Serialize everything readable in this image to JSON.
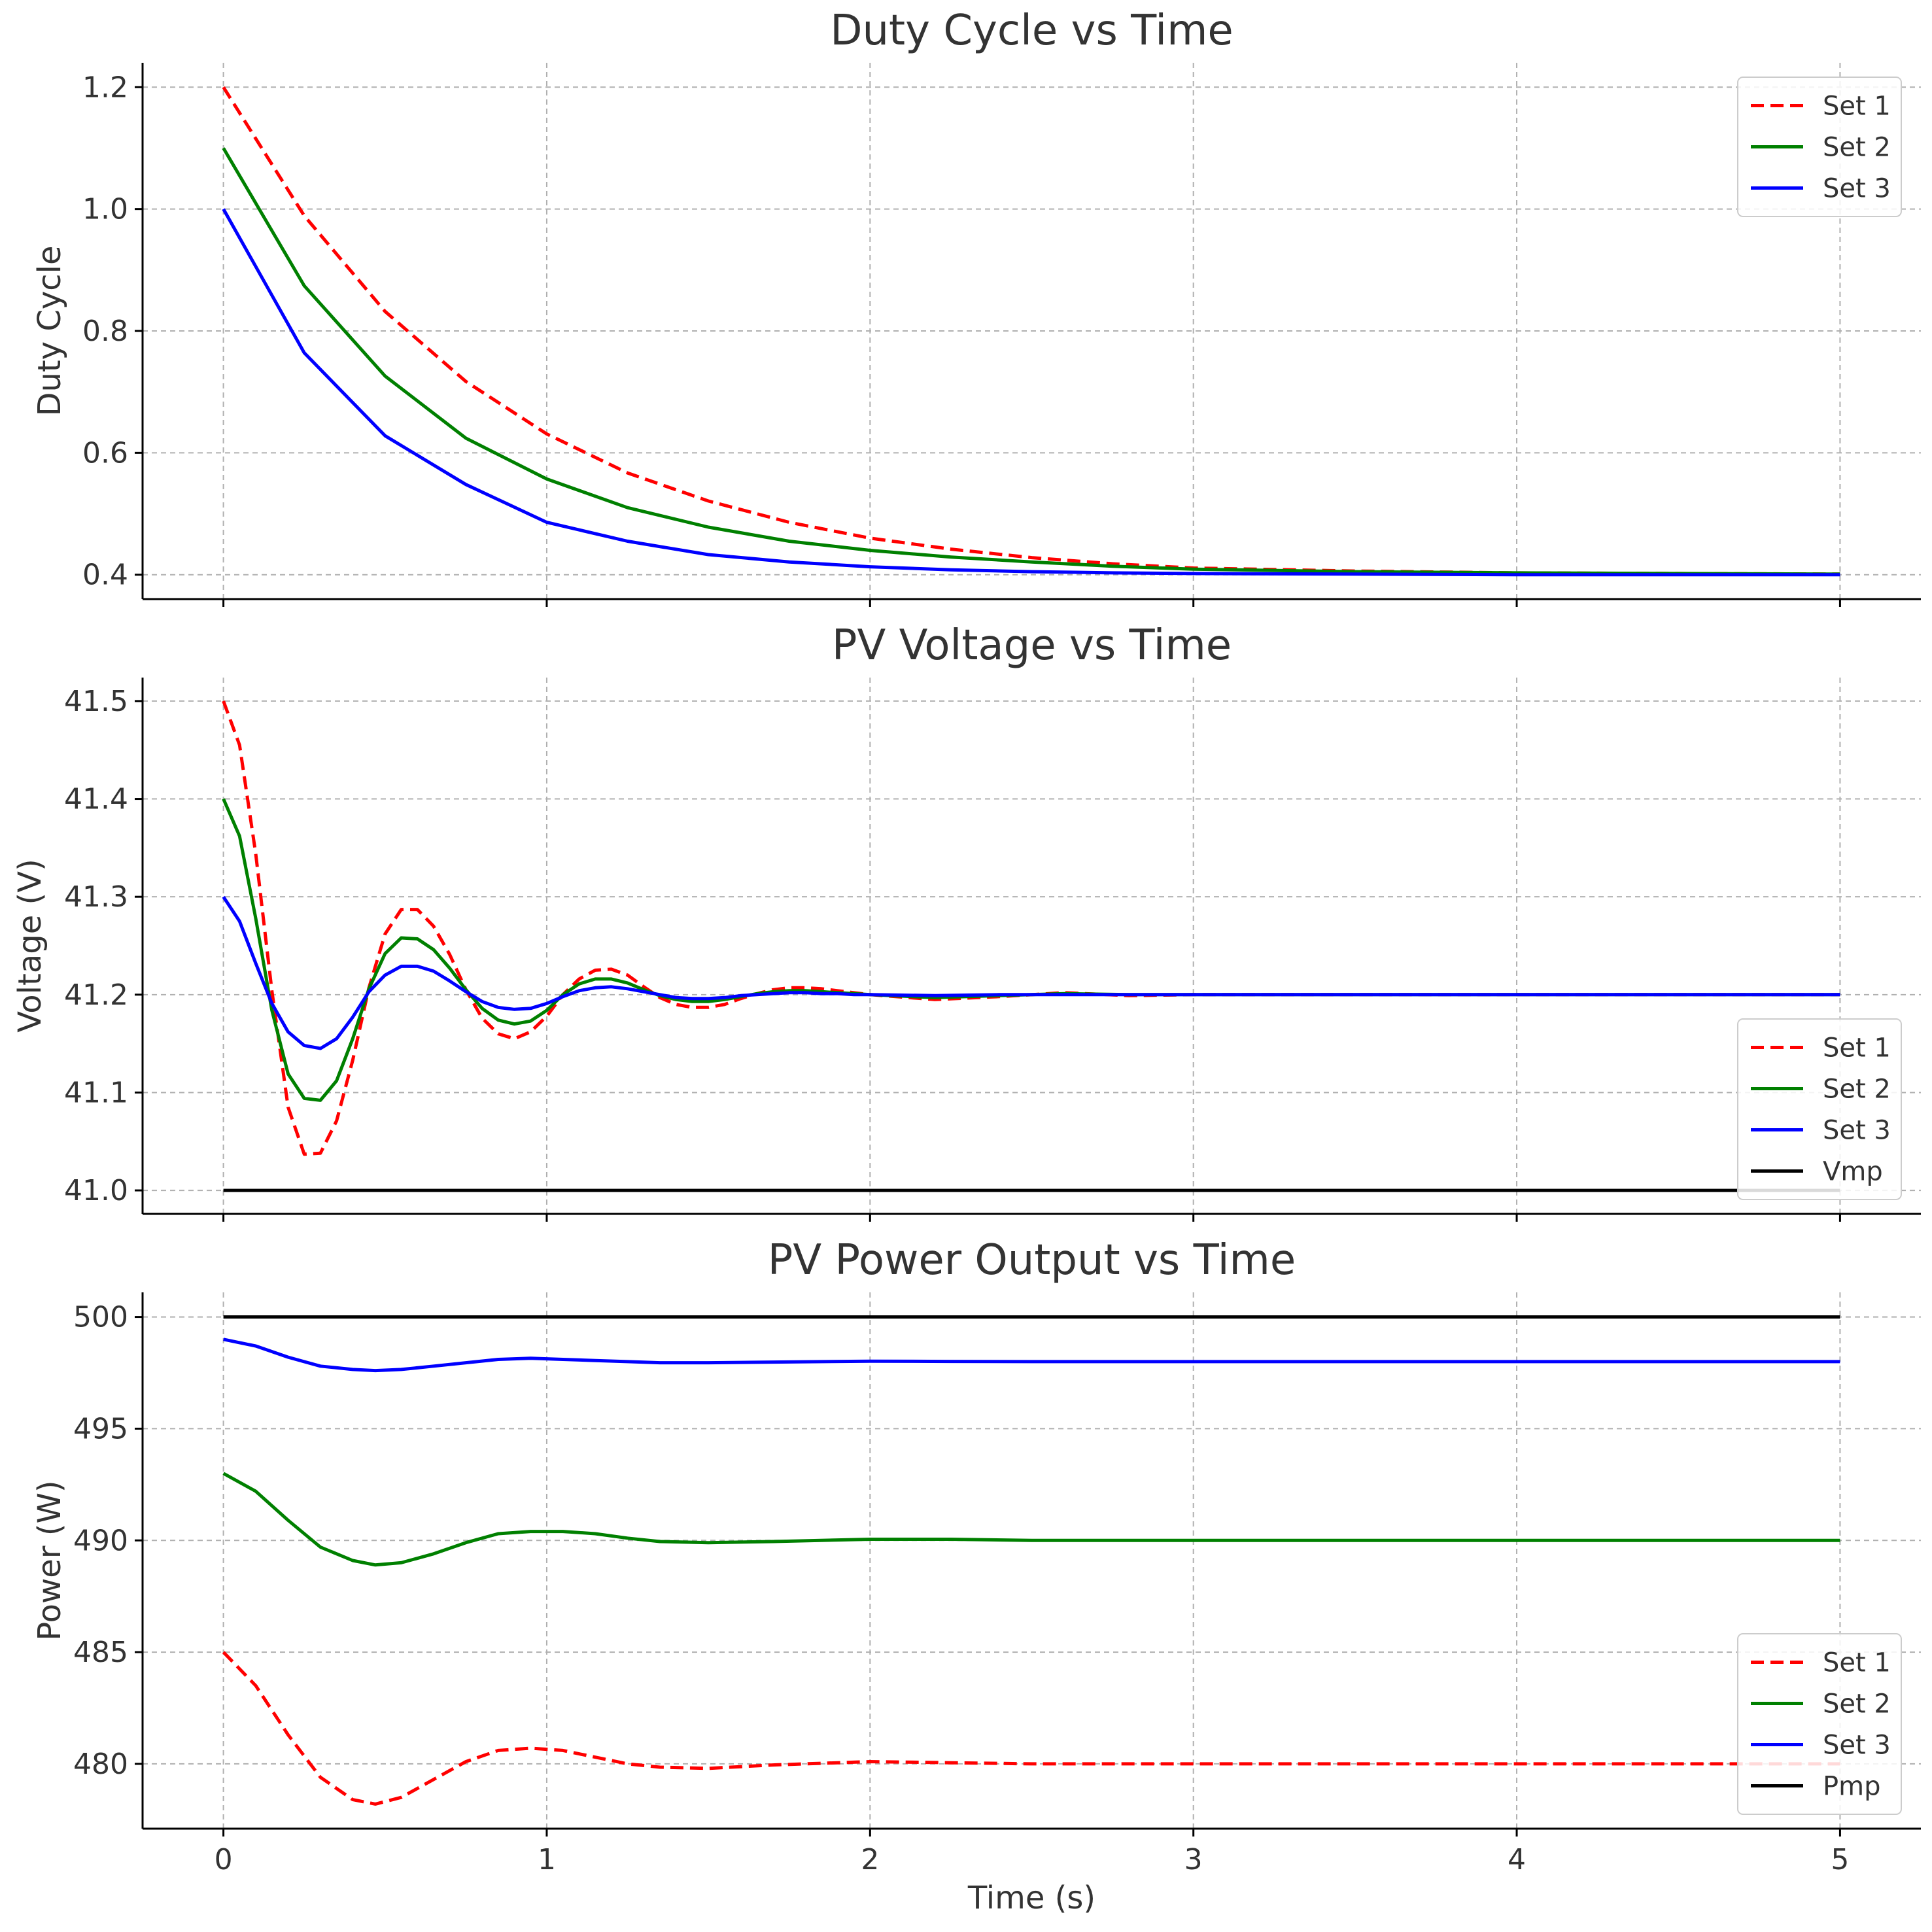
{
  "chart_data": [
    {
      "type": "line",
      "title": "Duty Cycle vs Time",
      "xlabel": "",
      "ylabel": "Duty Cycle",
      "xlim": [
        -0.25,
        5.25
      ],
      "ylim": [
        0.36,
        1.24
      ],
      "xticks": [
        0,
        1,
        2,
        3,
        4,
        5
      ],
      "yticks": [
        0.4,
        0.6,
        0.8,
        1.0,
        1.2
      ],
      "ytick_labels": [
        "0.4",
        "0.6",
        "0.8",
        "1.0",
        "1.2"
      ],
      "xtick_labels": [],
      "grid": true,
      "legend": "top-right",
      "x": [
        0,
        0.25,
        0.5,
        0.75,
        1,
        1.25,
        1.5,
        1.75,
        2,
        2.25,
        2.5,
        2.75,
        3,
        3.5,
        4,
        4.5,
        5
      ],
      "series": [
        {
          "name": "Set 1",
          "color": "#ff0000",
          "dash": "dashed",
          "values": [
            1.2,
            0.989,
            0.832,
            0.717,
            0.631,
            0.567,
            0.521,
            0.486,
            0.46,
            0.442,
            0.428,
            0.418,
            0.411,
            0.406,
            0.403,
            0.402,
            0.401
          ]
        },
        {
          "name": "Set 2",
          "color": "#008000",
          "dash": "solid",
          "values": [
            1.1,
            0.874,
            0.726,
            0.624,
            0.557,
            0.51,
            0.478,
            0.455,
            0.44,
            0.429,
            0.421,
            0.414,
            0.409,
            0.405,
            0.403,
            0.402,
            0.401
          ]
        },
        {
          "name": "Set 3",
          "color": "#0000ff",
          "dash": "solid",
          "values": [
            1.0,
            0.764,
            0.628,
            0.548,
            0.486,
            0.455,
            0.433,
            0.421,
            0.413,
            0.408,
            0.405,
            0.403,
            0.402,
            0.401,
            0.4,
            0.4,
            0.4
          ]
        }
      ]
    },
    {
      "type": "line",
      "title": "PV Voltage vs Time",
      "xlabel": "",
      "ylabel": "Voltage (V)",
      "xlim": [
        -0.25,
        5.25
      ],
      "ylim": [
        40.976,
        41.524
      ],
      "xticks": [
        0,
        1,
        2,
        3,
        4,
        5
      ],
      "yticks": [
        41.0,
        41.1,
        41.2,
        41.3,
        41.4,
        41.5
      ],
      "ytick_labels": [
        "41.0",
        "41.1",
        "41.2",
        "41.3",
        "41.4",
        "41.5"
      ],
      "xtick_labels": [],
      "grid": true,
      "legend": "lower-right",
      "x": [
        0,
        0.05,
        0.1,
        0.15,
        0.2,
        0.25,
        0.3,
        0.35,
        0.4,
        0.45,
        0.5,
        0.55,
        0.6,
        0.65,
        0.7,
        0.75,
        0.8,
        0.85,
        0.9,
        0.95,
        1.0,
        1.05,
        1.1,
        1.15,
        1.2,
        1.25,
        1.3,
        1.35,
        1.4,
        1.45,
        1.5,
        1.55,
        1.6,
        1.65,
        1.7,
        1.75,
        1.8,
        1.85,
        1.9,
        1.95,
        2.0,
        2.2,
        2.4,
        2.6,
        2.8,
        3.0,
        3.5,
        4.0,
        4.5,
        5.0
      ],
      "series": [
        {
          "name": "Set 1",
          "color": "#ff0000",
          "dash": "dashed",
          "values": [
            41.5,
            41.455,
            41.344,
            41.204,
            41.085,
            41.037,
            41.038,
            41.071,
            41.133,
            41.207,
            41.262,
            41.287,
            41.287,
            41.27,
            41.241,
            41.205,
            41.176,
            41.16,
            41.155,
            41.162,
            41.178,
            41.2,
            41.216,
            41.225,
            41.226,
            41.22,
            41.208,
            41.197,
            41.19,
            41.187,
            41.187,
            41.19,
            41.196,
            41.201,
            41.205,
            41.207,
            41.207,
            41.206,
            41.204,
            41.202,
            41.2,
            41.195,
            41.198,
            41.202,
            41.199,
            41.2,
            41.2,
            41.2,
            41.2,
            41.2
          ]
        },
        {
          "name": "Set 2",
          "color": "#008000",
          "dash": "solid",
          "values": [
            41.4,
            41.362,
            41.278,
            41.184,
            41.119,
            41.094,
            41.092,
            41.112,
            41.155,
            41.206,
            41.242,
            41.258,
            41.257,
            41.246,
            41.227,
            41.205,
            41.186,
            41.174,
            41.17,
            41.173,
            41.184,
            41.2,
            41.211,
            41.216,
            41.216,
            41.212,
            41.205,
            41.199,
            41.195,
            41.193,
            41.193,
            41.195,
            41.198,
            41.201,
            41.203,
            41.204,
            41.204,
            41.203,
            41.202,
            41.201,
            41.2,
            41.197,
            41.199,
            41.201,
            41.2,
            41.2,
            41.2,
            41.2,
            41.2,
            41.2
          ]
        },
        {
          "name": "Set 3",
          "color": "#0000ff",
          "dash": "solid",
          "values": [
            41.3,
            41.275,
            41.232,
            41.191,
            41.162,
            41.148,
            41.145,
            41.155,
            41.177,
            41.203,
            41.22,
            41.229,
            41.229,
            41.224,
            41.214,
            41.203,
            41.193,
            41.187,
            41.185,
            41.186,
            41.191,
            41.198,
            41.204,
            41.207,
            41.208,
            41.206,
            41.203,
            41.2,
            41.197,
            41.196,
            41.196,
            41.197,
            41.199,
            41.2,
            41.201,
            41.202,
            41.202,
            41.201,
            41.201,
            41.2,
            41.2,
            41.199,
            41.2,
            41.2,
            41.2,
            41.2,
            41.2,
            41.2,
            41.2,
            41.2
          ]
        },
        {
          "name": "Vmp",
          "color": "#000000",
          "dash": "solid",
          "values": [
            41.0,
            41.0,
            41.0,
            41.0,
            41.0,
            41.0,
            41.0,
            41.0,
            41.0,
            41.0,
            41.0,
            41.0,
            41.0,
            41.0,
            41.0,
            41.0,
            41.0,
            41.0,
            41.0,
            41.0,
            41.0,
            41.0,
            41.0,
            41.0,
            41.0,
            41.0,
            41.0,
            41.0,
            41.0,
            41.0,
            41.0,
            41.0,
            41.0,
            41.0,
            41.0,
            41.0,
            41.0,
            41.0,
            41.0,
            41.0,
            41.0,
            41.0,
            41.0,
            41.0,
            41.0,
            41.0,
            41.0,
            41.0,
            41.0,
            41.0
          ]
        }
      ]
    },
    {
      "type": "line",
      "title": "PV Power Output vs Time",
      "xlabel": "Time (s)",
      "ylabel": "Power (W)",
      "xlim": [
        -0.25,
        5.25
      ],
      "ylim": [
        477.1,
        501.1
      ],
      "xticks": [
        0,
        1,
        2,
        3,
        4,
        5
      ],
      "yticks": [
        480,
        485,
        490,
        495,
        500
      ],
      "ytick_labels": [
        "480",
        "485",
        "490",
        "495",
        "500"
      ],
      "xtick_labels": [
        "0",
        "1",
        "2",
        "3",
        "4",
        "5"
      ],
      "grid": true,
      "legend": "lower-right",
      "x": [
        0,
        0.1,
        0.2,
        0.3,
        0.4,
        0.47,
        0.55,
        0.65,
        0.75,
        0.85,
        0.95,
        1.05,
        1.15,
        1.25,
        1.35,
        1.5,
        1.7,
        2.0,
        2.25,
        2.5,
        3.0,
        3.5,
        4.0,
        4.5,
        5.0
      ],
      "series": [
        {
          "name": "Set 1",
          "color": "#ff0000",
          "dash": "dashed",
          "values": [
            485.0,
            483.5,
            481.3,
            479.4,
            478.4,
            478.2,
            478.5,
            479.3,
            480.1,
            480.6,
            480.7,
            480.6,
            480.3,
            480.0,
            479.85,
            479.8,
            479.95,
            480.1,
            480.05,
            480.0,
            480.0,
            480.0,
            480.0,
            480.0,
            480.0
          ]
        },
        {
          "name": "Set 2",
          "color": "#008000",
          "dash": "solid",
          "values": [
            493.0,
            492.2,
            490.9,
            489.7,
            489.1,
            488.9,
            489.0,
            489.4,
            489.9,
            490.3,
            490.4,
            490.4,
            490.3,
            490.1,
            489.95,
            489.9,
            489.95,
            490.05,
            490.05,
            490.0,
            490.0,
            490.0,
            490.0,
            490.0,
            490.0
          ]
        },
        {
          "name": "Set 3",
          "color": "#0000ff",
          "dash": "solid",
          "values": [
            499.0,
            498.7,
            498.2,
            497.8,
            497.65,
            497.6,
            497.65,
            497.8,
            497.95,
            498.1,
            498.15,
            498.1,
            498.05,
            498.0,
            497.95,
            497.95,
            497.98,
            498.02,
            498.01,
            498.0,
            498.0,
            498.0,
            498.0,
            498.0,
            498.0
          ]
        },
        {
          "name": "Pmp",
          "color": "#000000",
          "dash": "solid",
          "values": [
            500,
            500,
            500,
            500,
            500,
            500,
            500,
            500,
            500,
            500,
            500,
            500,
            500,
            500,
            500,
            500,
            500,
            500,
            500,
            500,
            500,
            500,
            500,
            500,
            500
          ]
        }
      ]
    }
  ]
}
